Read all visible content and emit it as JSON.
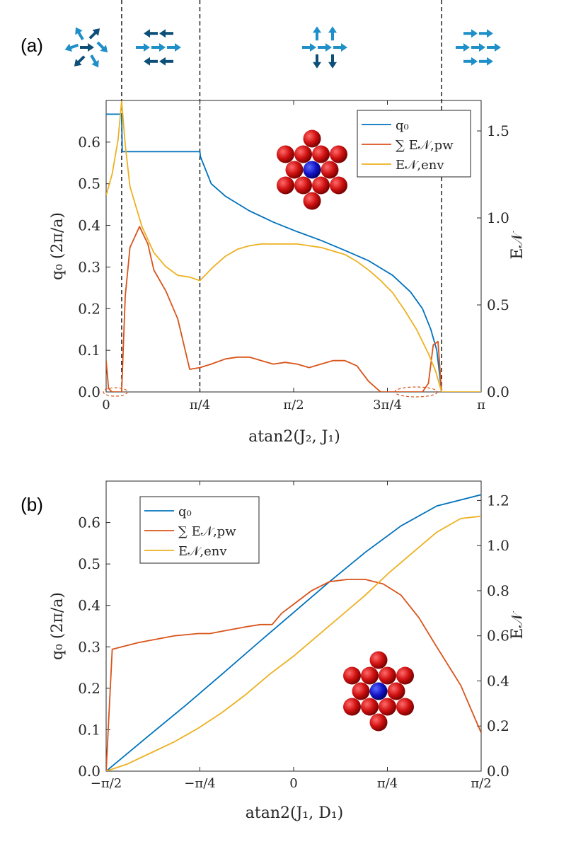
{
  "chart_data": [
    {
      "type": "line",
      "panel_label": "(a)",
      "xlabel": "atan2(J₂, J₁)",
      "ylabel": "q₀ (2π/a)",
      "y2label": "E𝒩",
      "xlim": [
        0,
        3.14159
      ],
      "ylim": [
        0,
        0.7
      ],
      "y2lim": [
        0,
        1.675
      ],
      "xticks": [
        0,
        0.7854,
        1.5708,
        2.3562,
        3.14159
      ],
      "xtick_labels": [
        "0",
        "π/4",
        "π/2",
        "3π/4",
        "π"
      ],
      "yticks": [
        0,
        0.1,
        0.2,
        0.3,
        0.4,
        0.5,
        0.6
      ],
      "ytick_labels": [
        "0.0",
        "0.1",
        "0.2",
        "0.3",
        "0.4",
        "0.5",
        "0.6"
      ],
      "y2ticks": [
        0,
        0.5,
        1.0,
        1.5
      ],
      "y2tick_labels": [
        "0.0",
        "0.5",
        "1.0",
        "1.5"
      ],
      "vlines": [
        0.13,
        0.7854,
        2.81
      ],
      "legend_position": "top-right",
      "series": [
        {
          "name": "q₀",
          "axis": "left",
          "color": "#0072BD",
          "x": [
            0,
            0.13,
            0.135,
            0.7854,
            0.79,
            0.88,
            1.0,
            1.2,
            1.4,
            1.6,
            1.8,
            2.0,
            2.2,
            2.4,
            2.55,
            2.65,
            2.72,
            2.77,
            2.81
          ],
          "y": [
            0.667,
            0.667,
            0.577,
            0.577,
            0.565,
            0.5,
            0.47,
            0.435,
            0.408,
            0.385,
            0.364,
            0.34,
            0.315,
            0.28,
            0.24,
            0.2,
            0.15,
            0.1,
            0.0
          ]
        },
        {
          "name": "∑ E𝒩,pw",
          "axis": "right",
          "color": "#D95319",
          "x": [
            0,
            0.02,
            0.05,
            0.1,
            0.13,
            0.16,
            0.2,
            0.28,
            0.35,
            0.4,
            0.5,
            0.6,
            0.7,
            0.7854,
            0.88,
            1.0,
            1.1,
            1.2,
            1.3,
            1.4,
            1.5,
            1.6,
            1.7,
            1.8,
            1.9,
            2.0,
            2.1,
            2.2,
            2.3,
            2.35,
            2.5,
            2.65,
            2.7,
            2.74,
            2.78,
            2.81
          ],
          "y": [
            0.18,
            0.02,
            0.0,
            0.0,
            0.0,
            0.55,
            0.83,
            0.95,
            0.85,
            0.7,
            0.58,
            0.42,
            0.13,
            0.14,
            0.16,
            0.19,
            0.2,
            0.2,
            0.18,
            0.16,
            0.17,
            0.16,
            0.14,
            0.16,
            0.18,
            0.18,
            0.15,
            0.06,
            0.0,
            0.0,
            0.0,
            0.0,
            0.05,
            0.27,
            0.29,
            0.0
          ]
        },
        {
          "name": "E𝒩,env",
          "axis": "right",
          "color": "#EDB120",
          "x": [
            0,
            0.05,
            0.1,
            0.13,
            0.16,
            0.2,
            0.3,
            0.4,
            0.5,
            0.6,
            0.7,
            0.7854,
            0.9,
            1.0,
            1.1,
            1.2,
            1.3,
            1.4,
            1.5,
            1.6,
            1.7,
            1.8,
            1.9,
            2.0,
            2.1,
            2.2,
            2.3,
            2.4,
            2.5,
            2.6,
            2.7,
            2.76,
            2.81
          ],
          "y": [
            1.13,
            1.25,
            1.45,
            1.67,
            1.42,
            1.18,
            0.95,
            0.8,
            0.72,
            0.67,
            0.66,
            0.64,
            0.72,
            0.78,
            0.82,
            0.84,
            0.85,
            0.85,
            0.85,
            0.85,
            0.84,
            0.83,
            0.81,
            0.79,
            0.75,
            0.7,
            0.64,
            0.57,
            0.47,
            0.36,
            0.22,
            0.12,
            0.0
          ]
        }
      ]
    },
    {
      "type": "line",
      "panel_label": "(b)",
      "xlabel": "atan2(J₁, D₁)",
      "ylabel": "q₀ (2π/a)",
      "y2label": "E𝒩",
      "xlim": [
        -1.5708,
        1.5708
      ],
      "ylim": [
        0,
        0.7
      ],
      "y2lim": [
        0,
        1.286
      ],
      "xticks": [
        -1.5708,
        -0.7854,
        0,
        0.7854,
        1.5708
      ],
      "xtick_labels": [
        "−π/2",
        "−π/4",
        "0",
        "π/4",
        "π/2"
      ],
      "yticks": [
        0,
        0.1,
        0.2,
        0.3,
        0.4,
        0.5,
        0.6
      ],
      "ytick_labels": [
        "0.0",
        "0.1",
        "0.2",
        "0.3",
        "0.4",
        "0.5",
        "0.6"
      ],
      "y2ticks": [
        0,
        0.2,
        0.4,
        0.6,
        0.8,
        1.0,
        1.2
      ],
      "y2tick_labels": [
        "0.0",
        "0.2",
        "0.4",
        "0.6",
        "0.8",
        "1.0",
        "1.2"
      ],
      "legend_position": "top-left",
      "series": [
        {
          "name": "q₀",
          "axis": "left",
          "color": "#0072BD",
          "x": [
            -1.5708,
            -1.2,
            -0.9,
            -0.6,
            -0.3,
            0,
            0.3,
            0.6,
            0.9,
            1.2,
            1.5708
          ],
          "y": [
            0.0,
            0.089,
            0.16,
            0.234,
            0.309,
            0.383,
            0.457,
            0.528,
            0.592,
            0.64,
            0.667
          ]
        },
        {
          "name": "∑ E𝒩,pw",
          "axis": "right",
          "color": "#D95319",
          "x": [
            -1.5708,
            -1.52,
            -1.3,
            -1.0,
            -0.8,
            -0.7,
            -0.6,
            -0.4,
            -0.28,
            -0.18,
            -0.1,
            0,
            0.15,
            0.3,
            0.45,
            0.6,
            0.75,
            0.9,
            1.05,
            1.2,
            1.4,
            1.5708
          ],
          "y": [
            0.0,
            0.54,
            0.57,
            0.6,
            0.61,
            0.61,
            0.62,
            0.64,
            0.65,
            0.65,
            0.7,
            0.74,
            0.8,
            0.84,
            0.85,
            0.85,
            0.83,
            0.78,
            0.68,
            0.55,
            0.38,
            0.17
          ]
        },
        {
          "name": "E𝒩,env",
          "axis": "right",
          "color": "#EDB120",
          "x": [
            -1.5708,
            -1.4,
            -1.2,
            -1.0,
            -0.8,
            -0.6,
            -0.4,
            -0.2,
            0,
            0.2,
            0.4,
            0.6,
            0.8,
            1.0,
            1.2,
            1.4,
            1.5708
          ],
          "y": [
            0.0,
            0.03,
            0.08,
            0.13,
            0.19,
            0.26,
            0.34,
            0.43,
            0.51,
            0.6,
            0.69,
            0.78,
            0.88,
            0.97,
            1.06,
            1.12,
            1.13
          ]
        }
      ]
    }
  ]
}
